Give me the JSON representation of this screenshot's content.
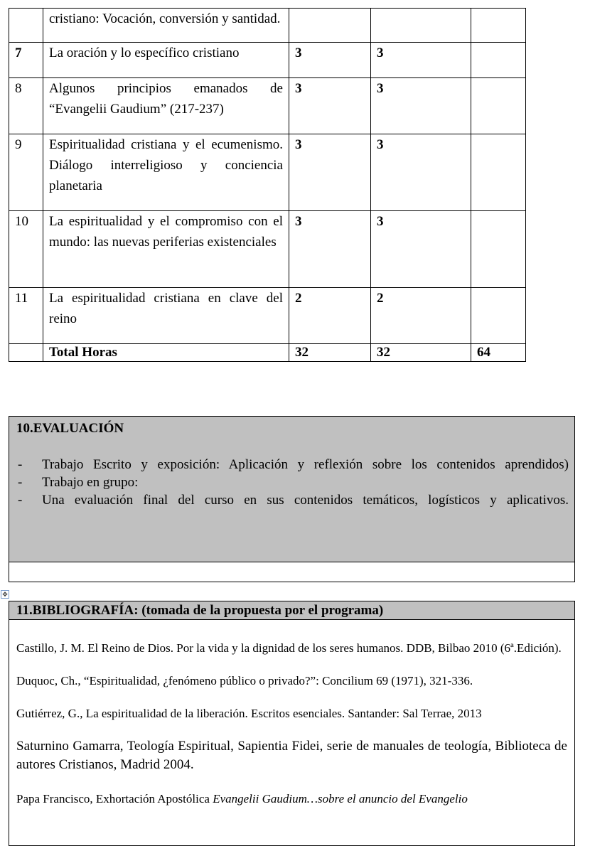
{
  "table": {
    "rows": [
      {
        "num": "",
        "topic": "cristiano: Vocación, conversión y santidad.",
        "a": "",
        "b": "",
        "c": ""
      },
      {
        "num": "7",
        "topic": "La oración y lo específico cristiano",
        "a": "3",
        "b": "3",
        "c": ""
      },
      {
        "num": "8",
        "topic": "Algunos principios emanados de “Evangelii Gaudium” (217-237)",
        "a": "3",
        "b": "3",
        "c": ""
      },
      {
        "num": "9",
        "topic": "Espiritualidad cristiana y el ecumenismo. Diálogo interreligioso y conciencia planetaria",
        "a": "3",
        "b": "3",
        "c": ""
      },
      {
        "num": "10",
        "topic": "La espiritualidad y el compromiso con el mundo: las nuevas periferias existenciales",
        "a": "3",
        "b": "3",
        "c": ""
      },
      {
        "num": "11",
        "topic": "La espiritualidad cristiana en clave del reino",
        "a": "2",
        "b": "2",
        "c": ""
      }
    ],
    "total": {
      "label": "Total Horas",
      "a": "32",
      "b": "32",
      "c": "64"
    }
  },
  "evaluacion": {
    "title": "10.EVALUACIÓN",
    "dash": "-",
    "items": [
      "Trabajo Escrito y exposición: Aplicación y reflexión sobre los contenidos aprendidos)",
      "Trabajo en grupo:",
      "Una evaluación final del curso en sus contenidos temáticos, logísticos  y aplicativos."
    ]
  },
  "bibliografia": {
    "title": "11.BIBLIOGRAFÍA: (tomada de la propuesta por el programa)",
    "entries": [
      "Castillo, J. M. El Reino de Dios. Por la vida y la dignidad de los seres humanos. DDB, Bilbao 2010 (6ª.Edición).",
      "Duquoc, Ch., “Espiritualidad, ¿fenómeno público o privado?”: Concilium 69 (1971), 321-336.",
      "Gutiérrez, G., La espiritualidad de la liberación. Escritos esenciales. Santander: Sal Terrae, 2013",
      "Saturnino Gamarra, Teología Espiritual, Sapientia Fidei, serie de manuales de teología, Biblioteca de autores Cristianos, Madrid 2004."
    ],
    "last": {
      "prefix": "Papa Francisco, Exhortación Apostólica ",
      "italic": "Evangelii Gaudium…sobre el anuncio del Evangelio"
    }
  },
  "icons": {
    "table_move": "move-handle-icon"
  }
}
